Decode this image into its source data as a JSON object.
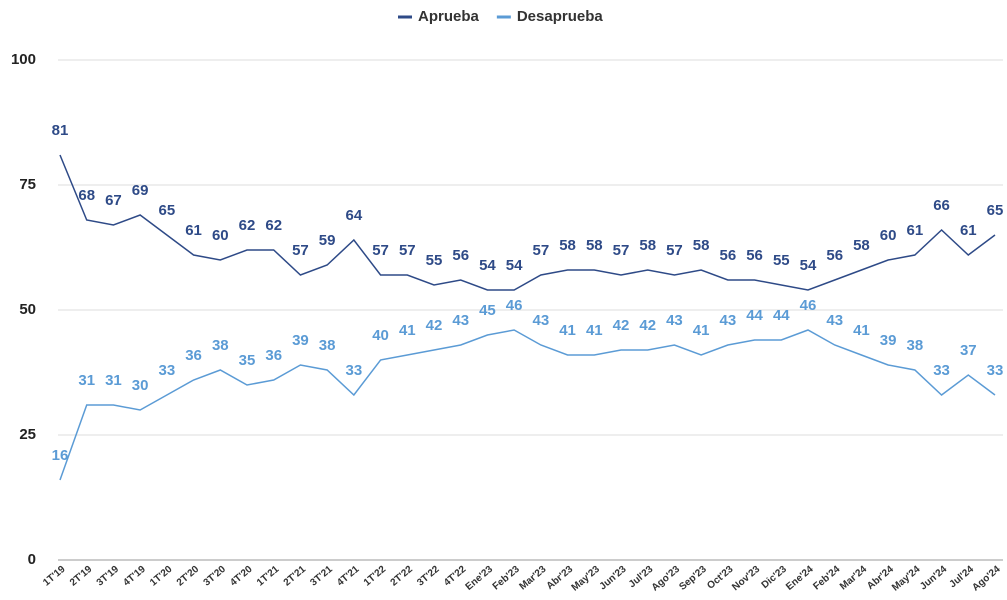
{
  "chart_data": {
    "type": "line",
    "categories": [
      "1T'19",
      "2T'19",
      "3T'19",
      "4T'19",
      "1T'20",
      "2T'20",
      "3T'20",
      "4T'20",
      "1T'21",
      "2T'21",
      "3T'21",
      "4T'21",
      "1T'22",
      "2T'22",
      "3T'22",
      "4T'22",
      "Ene'23",
      "Feb'23",
      "Mar'23",
      "Abr'23",
      "May'23",
      "Jun'23",
      "Jul'23",
      "Ago'23",
      "Sep'23",
      "Oct'23",
      "Nov'23",
      "Dic'23",
      "Ene'24",
      "Feb'24",
      "Mar'24",
      "Abr'24",
      "May'24",
      "Jun'24",
      "Jul'24",
      "Ago'24"
    ],
    "series": [
      {
        "name": "Aprueba",
        "color": "#2e4a87",
        "values": [
          81,
          68,
          67,
          69,
          65,
          61,
          60,
          62,
          62,
          57,
          59,
          64,
          57,
          57,
          55,
          56,
          54,
          54,
          57,
          58,
          58,
          57,
          58,
          57,
          58,
          56,
          56,
          55,
          54,
          56,
          58,
          60,
          61,
          66,
          61,
          65
        ]
      },
      {
        "name": "Desaprueba",
        "color": "#5b9bd5",
        "values": [
          16,
          31,
          31,
          30,
          33,
          36,
          38,
          35,
          36,
          39,
          38,
          33,
          40,
          41,
          42,
          43,
          45,
          46,
          43,
          41,
          41,
          42,
          42,
          43,
          41,
          43,
          44,
          44,
          46,
          43,
          41,
          39,
          38,
          33,
          37,
          33
        ]
      }
    ],
    "ylim": [
      0,
      100
    ],
    "yticks": [
      0,
      25,
      50,
      75,
      100
    ],
    "grid": true,
    "legend": "top"
  }
}
